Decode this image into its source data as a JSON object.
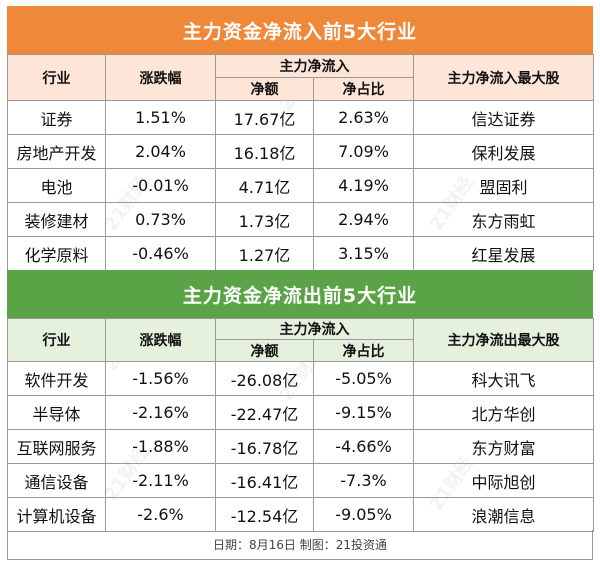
{
  "inflow": {
    "title": "主力资金净流入前5大行业",
    "headers": {
      "industry": "行业",
      "change": "涨跌幅",
      "group": "主力净流入",
      "amount": "净额",
      "ratio": "净占比",
      "top_stock": "主力净流入最大股"
    },
    "rows": [
      {
        "industry": "证券",
        "change": "1.51%",
        "amount": "17.67亿",
        "ratio": "2.63%",
        "stock": "信达证券"
      },
      {
        "industry": "房地产开发",
        "change": "2.04%",
        "amount": "16.18亿",
        "ratio": "7.09%",
        "stock": "保利发展"
      },
      {
        "industry": "电池",
        "change": "-0.01%",
        "amount": "4.71亿",
        "ratio": "4.19%",
        "stock": "盟固利"
      },
      {
        "industry": "装修建材",
        "change": "0.73%",
        "amount": "1.73亿",
        "ratio": "2.94%",
        "stock": "东方雨虹"
      },
      {
        "industry": "化学原料",
        "change": "-0.46%",
        "amount": "1.27亿",
        "ratio": "3.15%",
        "stock": "红星发展"
      }
    ]
  },
  "outflow": {
    "title": "主力资金净流出前5大行业",
    "headers": {
      "industry": "行业",
      "change": "涨跌幅",
      "group": "主力净流入",
      "amount": "净额",
      "ratio": "净占比",
      "top_stock": "主力净流出最大股"
    },
    "rows": [
      {
        "industry": "软件开发",
        "change": "-1.56%",
        "amount": "-26.08亿",
        "ratio": "-5.05%",
        "stock": "科大讯飞"
      },
      {
        "industry": "半导体",
        "change": "-2.16%",
        "amount": "-22.47亿",
        "ratio": "-9.15%",
        "stock": "北方华创"
      },
      {
        "industry": "互联网服务",
        "change": "-1.88%",
        "amount": "-16.78亿",
        "ratio": "-4.66%",
        "stock": "东方财富"
      },
      {
        "industry": "通信设备",
        "change": "-2.11%",
        "amount": "-16.41亿",
        "ratio": "-7.3%",
        "stock": "中际旭创"
      },
      {
        "industry": "计算机设备",
        "change": "-2.6%",
        "amount": "-12.54亿",
        "ratio": "-9.05%",
        "stock": "浪潮信息"
      }
    ]
  },
  "footer": "日期：8月16日 制图：21投资通",
  "watermark": "21财经",
  "colors": {
    "inflow_banner": "#f0883a",
    "inflow_header": "#fde6d8",
    "outflow_banner": "#5aa447",
    "outflow_header": "#e5f1dc"
  }
}
